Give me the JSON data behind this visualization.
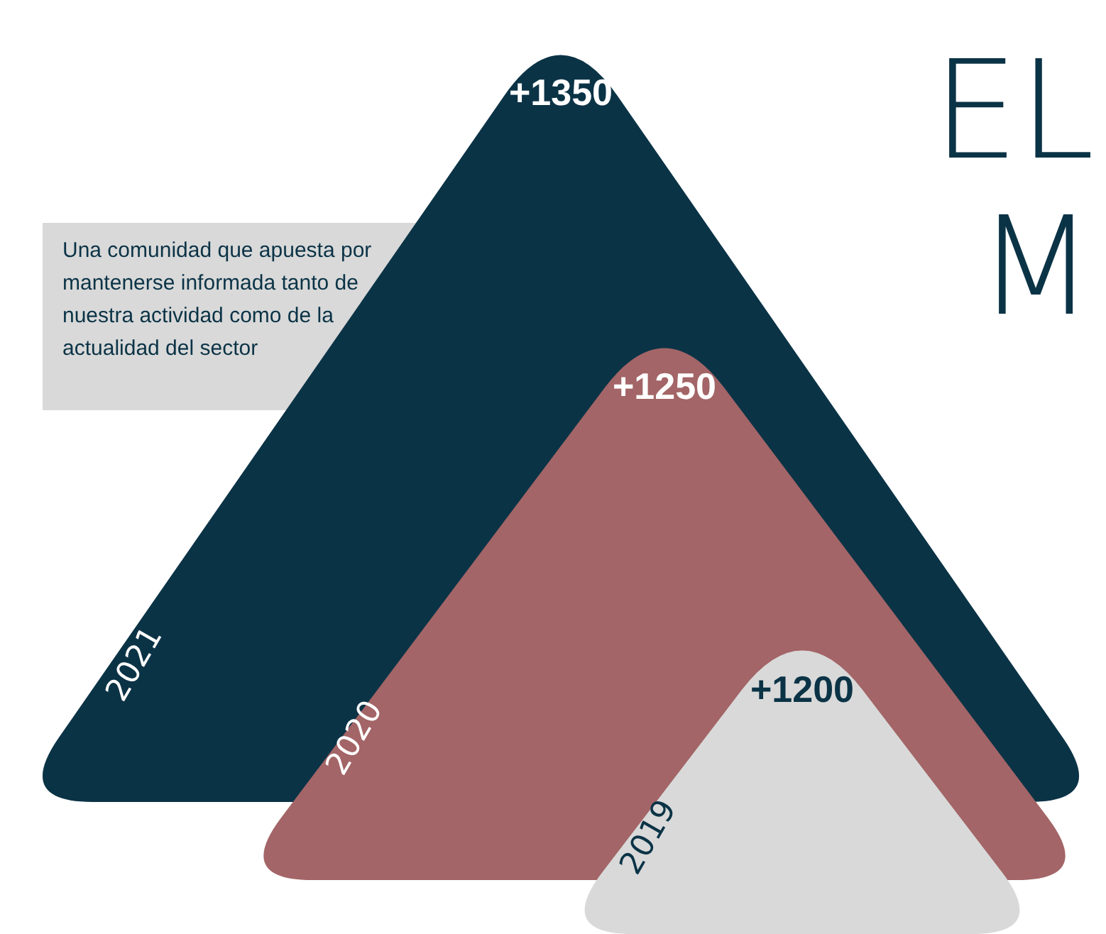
{
  "chart_data": {
    "type": "other",
    "title": "EL M",
    "categories": [
      "2021",
      "2020",
      "2019"
    ],
    "values": [
      1350,
      1250,
      1200
    ],
    "value_labels": [
      "+1350",
      "+1250",
      "+1200"
    ],
    "colors": [
      "#0b3346",
      "#a36567",
      "#d9d9d9"
    ],
    "annotations": [
      "Una comunidad que apuesta por mantenerse informada tanto de nuestra actividad como de la actualidad del sector"
    ]
  }
}
